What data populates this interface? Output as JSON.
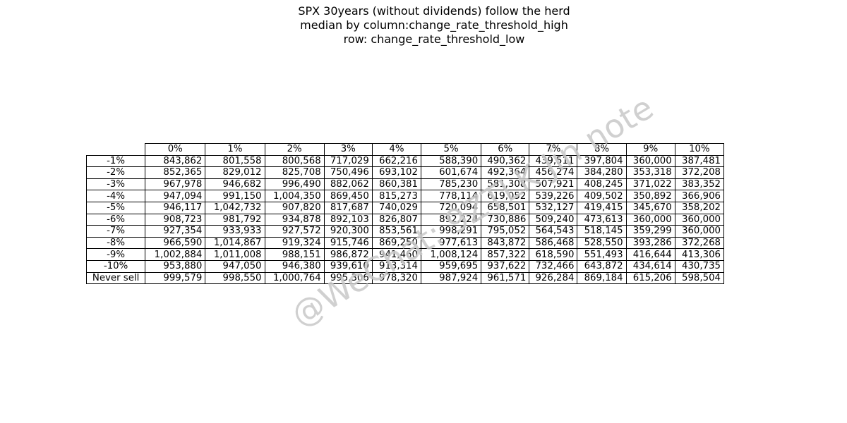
{
  "title_lines": [
    "SPX 30years (without dividends) follow the herd",
    "median by column:change_rate_threshold_high",
    "row: change_rate_threshold_low"
  ],
  "watermark": "@WeChat: 9ZTLK Jin note",
  "chart_data": {
    "type": "table",
    "title": "SPX 30years (without dividends) follow the herd median by column:change_rate_threshold_high row: change_rate_threshold_low",
    "columns": [
      "0%",
      "1%",
      "2%",
      "3%",
      "4%",
      "5%",
      "6%",
      "7%",
      "8%",
      "9%",
      "10%"
    ],
    "rows": [
      {
        "label": "-1%",
        "values": [
          "843,862",
          "801,558",
          "800,568",
          "717,029",
          "662,216",
          "588,390",
          "490,362",
          "439,511",
          "397,804",
          "360,000",
          "387,481"
        ]
      },
      {
        "label": "-2%",
        "values": [
          "852,365",
          "829,012",
          "825,708",
          "750,496",
          "693,102",
          "601,674",
          "492,364",
          "456,274",
          "384,280",
          "353,318",
          "372,208"
        ]
      },
      {
        "label": "-3%",
        "values": [
          "967,978",
          "946,682",
          "996,490",
          "882,062",
          "860,381",
          "785,230",
          "581,308",
          "507,921",
          "408,245",
          "371,022",
          "383,352"
        ]
      },
      {
        "label": "-4%",
        "values": [
          "947,094",
          "991,150",
          "1,004,350",
          "869,450",
          "815,273",
          "778,114",
          "619,052",
          "539,226",
          "409,502",
          "350,892",
          "366,906"
        ]
      },
      {
        "label": "-5%",
        "values": [
          "946,117",
          "1,042,732",
          "907,820",
          "817,687",
          "740,029",
          "720,094",
          "658,501",
          "532,127",
          "419,415",
          "345,670",
          "358,202"
        ]
      },
      {
        "label": "-6%",
        "values": [
          "908,723",
          "981,792",
          "934,878",
          "892,103",
          "826,807",
          "892,224",
          "730,886",
          "509,240",
          "473,613",
          "360,000",
          "360,000"
        ]
      },
      {
        "label": "-7%",
        "values": [
          "927,354",
          "933,933",
          "927,572",
          "920,300",
          "853,561",
          "998,291",
          "795,052",
          "564,543",
          "518,145",
          "359,299",
          "360,000"
        ]
      },
      {
        "label": "-8%",
        "values": [
          "966,590",
          "1,014,867",
          "919,324",
          "915,746",
          "869,250",
          "977,613",
          "843,872",
          "586,468",
          "528,550",
          "393,286",
          "372,268"
        ]
      },
      {
        "label": "-9%",
        "values": [
          "1,002,884",
          "1,011,008",
          "988,151",
          "986,872",
          "941,460",
          "1,008,124",
          "857,322",
          "618,590",
          "551,493",
          "416,644",
          "413,306"
        ]
      },
      {
        "label": "-10%",
        "values": [
          "953,880",
          "947,050",
          "946,380",
          "939,610",
          "913,314",
          "959,695",
          "937,622",
          "732,466",
          "643,872",
          "434,614",
          "430,735"
        ]
      },
      {
        "label": "Never sell",
        "values": [
          "999,579",
          "998,550",
          "1,000,764",
          "995,306",
          "978,320",
          "987,924",
          "961,571",
          "926,284",
          "869,184",
          "615,206",
          "598,504"
        ]
      }
    ]
  }
}
